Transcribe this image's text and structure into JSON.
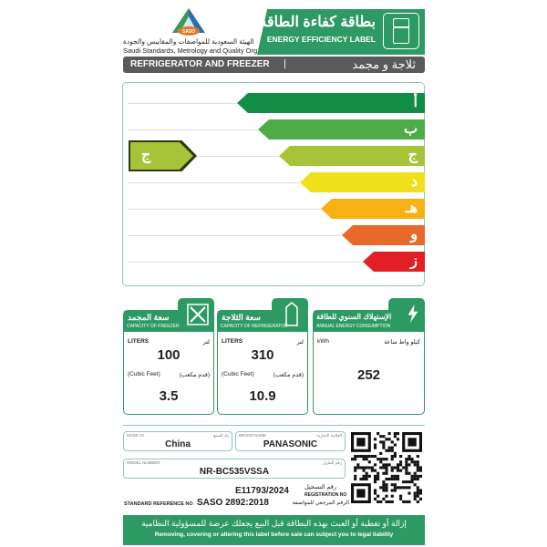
{
  "header": {
    "logo_text": "SASO",
    "org_arabic": "الهيئة السعودية للمواصفات والمقاييس والجودة",
    "org_english": "Saudi Standards, Metrology and Quality Org.",
    "title_arabic": "بطاقة كفاءة الطاقة",
    "title_english": "ENERGY EFFICIENCY LABEL",
    "icon": "refrigerator-icon"
  },
  "category": {
    "english": "REFRIGERATOR AND FREEZER",
    "separator": "|",
    "arabic": "ثلاجة و مجمد"
  },
  "rating": {
    "classes": [
      {
        "label": "أ",
        "color": "#138c45"
      },
      {
        "label": "ب",
        "color": "#4eab47"
      },
      {
        "label": "ج",
        "color": "#a7c438"
      },
      {
        "label": "د",
        "color": "#eee11b"
      },
      {
        "label": "هـ",
        "color": "#f6b114"
      },
      {
        "label": "و",
        "color": "#e8692a"
      },
      {
        "label": "ز",
        "color": "#e31e24"
      }
    ],
    "selected": "ج",
    "selected_index": 2
  },
  "freezer": {
    "title_arabic": "سعة المجمد",
    "title_english": "CAPACITY OF FREEZER",
    "icon": "expand-arrows-icon",
    "unit_en": "LITERS",
    "unit_ar": "لتر",
    "liters": "100",
    "cf_en": "(Cubic Feet)",
    "cf_ar": "(قدم مكعب)",
    "cubic_feet": "3.5"
  },
  "refrigerator": {
    "title_arabic": "سعة الثلاجة",
    "title_english": "CAPACITY OF REFRIGERATOR",
    "icon": "milk-carton-icon",
    "unit_en": "LITERS",
    "unit_ar": "لتر",
    "liters": "310",
    "cf_en": "(Cubic Feet)",
    "cf_ar": "(قدم مكعب)",
    "cubic_feet": "10.9"
  },
  "energy": {
    "title_arabic": "الإستهلاك السنوي للطاقة",
    "title_english": "ANNUAL ENERGY CONSUMPTION",
    "icon": "lightning-icon",
    "unit_en": "kWh",
    "unit_ar": "كيلو واط ساعة",
    "value": "252"
  },
  "details": {
    "made_in_label_en": "MADE IN",
    "made_in_label_ar": "بلد الصنع",
    "made_in": "China",
    "brand_label_en": "BRAND NAME",
    "brand_label_ar": "العلامة التجارية",
    "brand": "PANASONIC",
    "model_label_en": "MODEL NUMBER",
    "model_label_ar": "رقم الطراز",
    "model": "NR-BC535VSSA",
    "registration_no": "E11793/2024",
    "registration_label_ar": "رقم التسجيل",
    "registration_label_en": "REGISTRATION NO",
    "standard_label_en": "STANDARD REFERENCE NO",
    "standard": "SASO 2892:2018",
    "standard_label_ar": "الرقم المرجعي للمواصفة"
  },
  "footer": {
    "arabic": "إزالة أو تغطية أو العبث بهذه البطاقة قبل البيع يجعلك عرضة للمسؤولية النظامية",
    "english": "Removing, covering or altering this label before sale can subject you to legal liability"
  }
}
